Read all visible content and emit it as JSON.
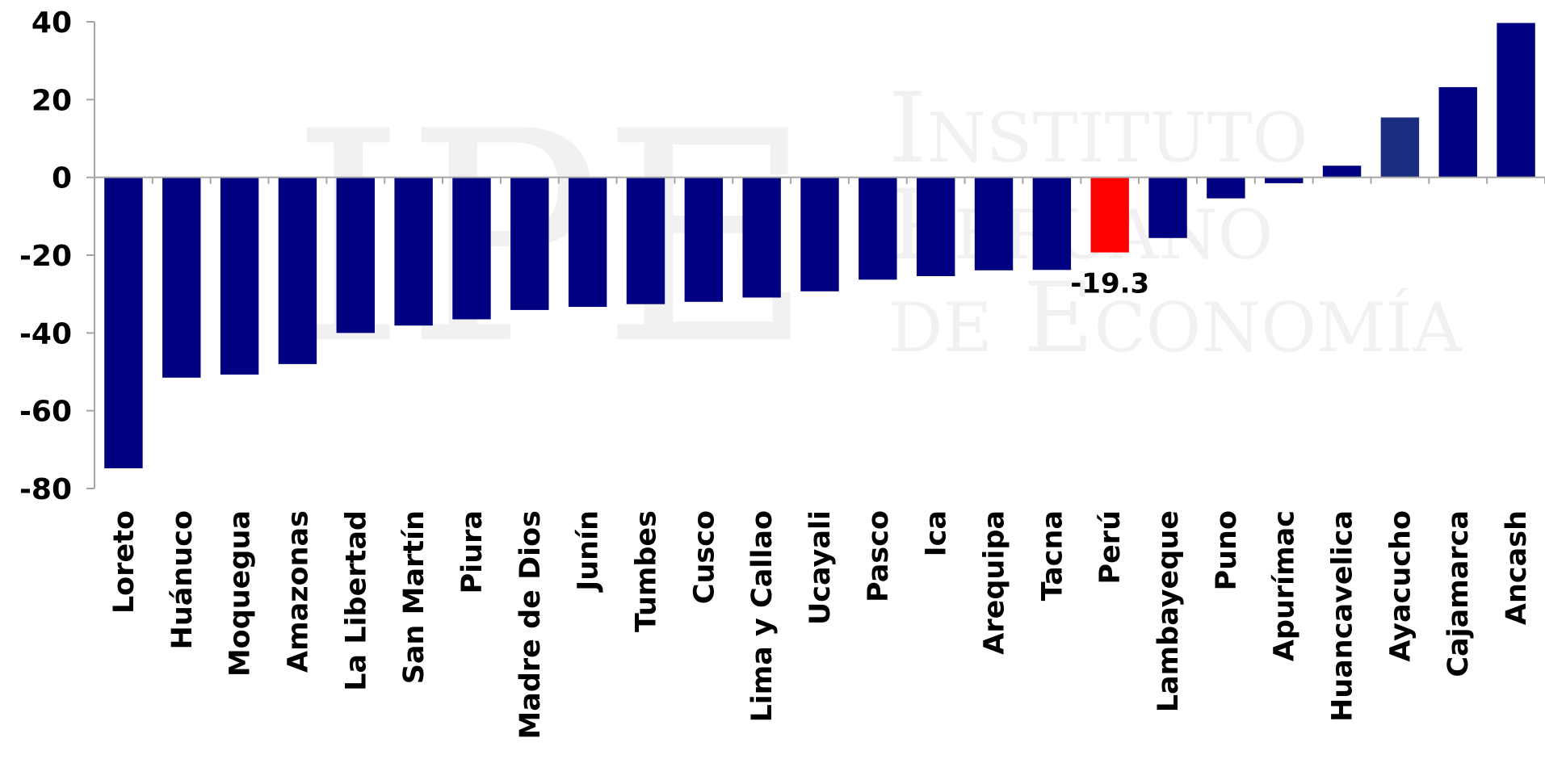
{
  "watermark": {
    "logo_letters": "IPE",
    "line1": "Instituto",
    "line2": "Peruano",
    "line3": "de Economía"
  },
  "chart_data": {
    "type": "bar",
    "categories": [
      "Loreto",
      "Huánuco",
      "Moquegua",
      "Amazonas",
      "La Libertad",
      "San Martín",
      "Piura",
      "Madre de Dios",
      "Junín",
      "Tumbes",
      "Cusco",
      "Lima y Callao",
      "Ucayali",
      "Pasco",
      "Ica",
      "Arequipa",
      "Tacna",
      "Perú",
      "Lambayeque",
      "Puno",
      "Apurímac",
      "Huancavelica",
      "Ayacucho",
      "Cajamarca",
      "Ancash"
    ],
    "values": [
      -74.8,
      -51.5,
      -50.7,
      -48.0,
      -40.0,
      -38.1,
      -36.5,
      -34.1,
      -33.3,
      -32.6,
      -32.0,
      -30.9,
      -29.3,
      -26.3,
      -25.4,
      -23.9,
      -23.8,
      -19.3,
      -15.6,
      -5.4,
      -1.5,
      3.0,
      15.4,
      23.2,
      39.7
    ],
    "colors": [
      "#000080",
      "#000080",
      "#000080",
      "#000080",
      "#000080",
      "#000080",
      "#000080",
      "#000080",
      "#000080",
      "#000080",
      "#000080",
      "#000080",
      "#000080",
      "#000080",
      "#000080",
      "#000080",
      "#000080",
      "#ff0000",
      "#000080",
      "#000080",
      "#000080",
      "#000080",
      "#1a2d80",
      "#000080",
      "#000080"
    ],
    "data_labels": [
      {
        "index": 17,
        "text": "-19.3"
      }
    ],
    "ylim": [
      -80,
      40
    ],
    "yticks": [
      "-80",
      "-60",
      "-40",
      "-20",
      "0",
      "20",
      "40"
    ],
    "title": "",
    "xlabel": "",
    "ylabel": "",
    "grid": false,
    "legend": "none"
  }
}
